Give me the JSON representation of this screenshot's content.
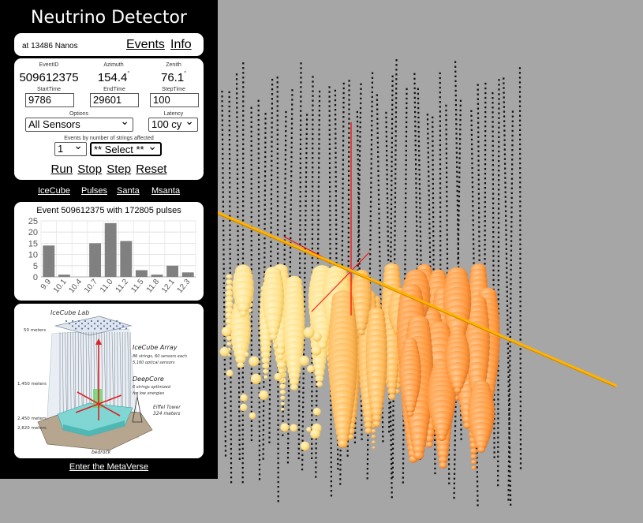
{
  "app": {
    "title": "Neutrino Detector"
  },
  "status": {
    "nanos": "at 13486 Nanos"
  },
  "nav": {
    "events": "Events",
    "info": "Info"
  },
  "event": {
    "id_label": "EventID",
    "id": "509612375",
    "azimuth_label": "Azimuth",
    "azimuth": "154.4",
    "zenith_label": "Zenith",
    "zenith": "76.1"
  },
  "degree_symbol": "°",
  "time": {
    "start_label": "StartTime",
    "start": "9786",
    "end_label": "EndTime",
    "end": "29601",
    "step_label": "StepTime",
    "step": "100"
  },
  "options": {
    "label": "Options",
    "value": "All Sensors"
  },
  "latency": {
    "label": "Latency",
    "value": "100 cy"
  },
  "strings_filter": {
    "label": "Events by number of strings affected",
    "count": "1",
    "select": "** Select **"
  },
  "controls": {
    "run": "Run",
    "stop": "Stop",
    "step": "Step",
    "reset": "Reset"
  },
  "links": {
    "icecube": "IceCube",
    "pulses": "Pulses",
    "santa": "Santa",
    "msanta": "Msanta"
  },
  "chart_title": "Event 509612375 with 172805 pulses",
  "chart_data": {
    "type": "bar",
    "title": "Event 509612375 with 172805 pulses",
    "categories": [
      "9.9",
      "10.1",
      "10.4",
      "10.7",
      "11.0",
      "11.2",
      "11.5",
      "11.8",
      "12.1",
      "12.3"
    ],
    "values": [
      14,
      1,
      0,
      15,
      24,
      16,
      3,
      1,
      5,
      2
    ],
    "yticks": [
      0,
      5,
      10,
      15,
      20,
      25
    ],
    "ylim": [
      0,
      25
    ],
    "grid": true,
    "bar_color": "#808080"
  },
  "diagram": {
    "lab": "IceCube Lab",
    "array": "IceCube Array",
    "array_desc1": "86 strings, 60 sensors each",
    "array_desc2": "5,160 optical sensors",
    "deepcore": "DeepCore",
    "deepcore_desc1": "6 strings optimized",
    "deepcore_desc2": "for low energies",
    "eiffel": "Eiffel Tower",
    "eiffel_h": "324 meters",
    "bedrock": "bedrock",
    "depths": [
      "50 meters",
      "1,450 meters",
      "2,450 meters",
      "2,820 meters"
    ]
  },
  "footer": {
    "metaverse": "Enter the MetaVerse"
  },
  "colors": {
    "background": "#a6a6a6",
    "panel": "#000000",
    "track": "#ffb300",
    "axis": "#ff0000",
    "hit_light": "#ffe08a",
    "hit_dark": "#ff8a2a"
  }
}
